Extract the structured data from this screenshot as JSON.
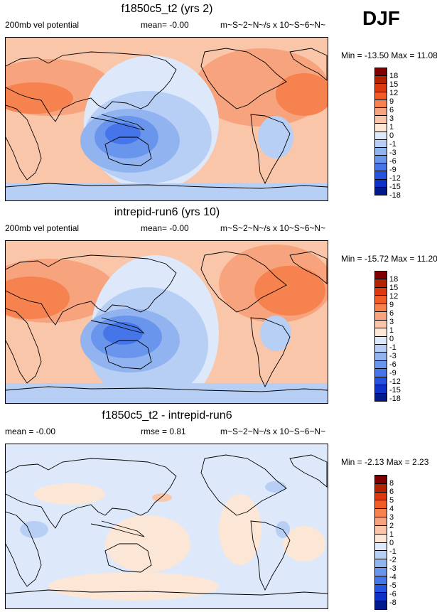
{
  "season": "DJF",
  "colors": [
    "#7f0000",
    "#b42200",
    "#dc3a0e",
    "#f25b28",
    "#f5824f",
    "#f7a47e",
    "#f9c6aa",
    "#fce6d6",
    "#dde9fa",
    "#b8cff5",
    "#91b3f0",
    "#6a95ec",
    "#4575e8",
    "#2553e0",
    "#0d30c8",
    "#001a8c"
  ],
  "panels": [
    {
      "title": "f1850c5_t2 (yrs 2)",
      "left_label": "200mb vel potential",
      "mean_label": "mean=  -0.00",
      "units": "m~S~2~N~/s x 10~S~6~N~",
      "minmax": "Min = -13.50 Max =  11.08",
      "levels": [
        "18",
        "15",
        "12",
        "9",
        "6",
        "3",
        "1",
        "0",
        "-1",
        "-3",
        "-6",
        "-9",
        "-12",
        "-15",
        "-18"
      ]
    },
    {
      "title": "intrepid-run6 (yrs 10)",
      "left_label": "200mb vel potential",
      "mean_label": "mean=  -0.00",
      "units": "m~S~2~N~/s x 10~S~6~N~",
      "minmax": "Min = -15.72 Max =  11.20",
      "levels": [
        "18",
        "15",
        "12",
        "9",
        "6",
        "3",
        "1",
        "0",
        "-1",
        "-3",
        "-6",
        "-9",
        "-12",
        "-15",
        "-18"
      ]
    },
    {
      "title": "f1850c5_t2 - intrepid-run6",
      "left_label": "mean =  -0.00",
      "mean_label": "rmse =   0.81",
      "units": "m~S~2~N~/s x 10~S~6~N~",
      "minmax": "Min =  -2.13 Max =   2.23",
      "levels": [
        "8",
        "6",
        "5",
        "4",
        "3",
        "2",
        "1",
        "0",
        "-1",
        "-2",
        "-3",
        "-4",
        "-5",
        "-6",
        "-8"
      ]
    }
  ]
}
